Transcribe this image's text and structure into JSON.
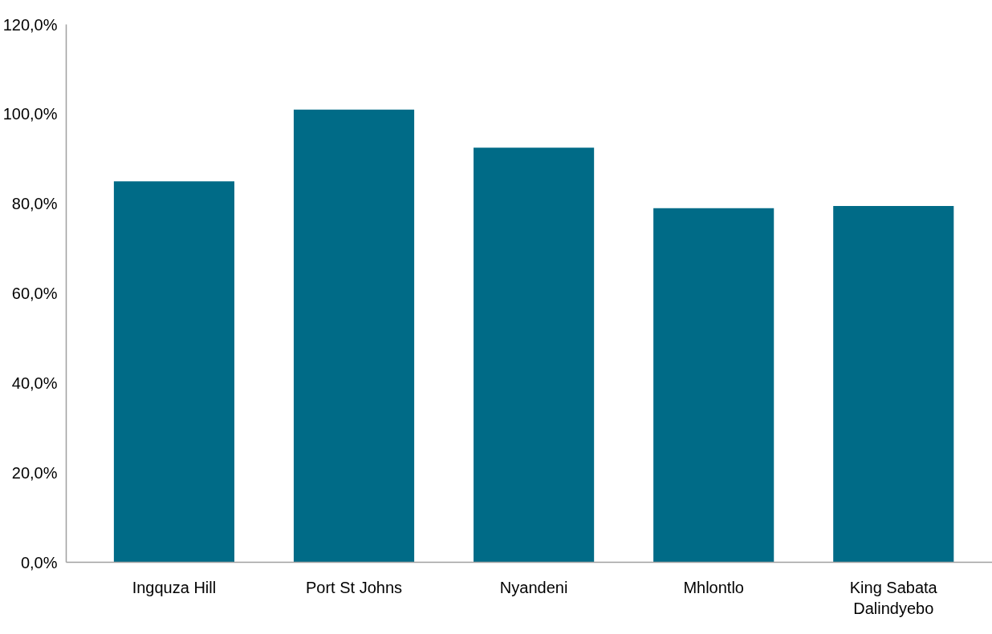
{
  "chart_data": {
    "type": "bar",
    "categories": [
      "Ingquza Hill",
      "Port St Johns",
      "Nyandeni",
      "Mhlontlo",
      "King Sabata\nDalindyebo"
    ],
    "series": [
      {
        "color": "#006b87",
        "values": [
          85,
          101,
          92.5,
          79,
          79.5
        ]
      }
    ],
    "ylim": [
      0,
      120
    ],
    "yticks": [
      {
        "value": 0,
        "label": "0,0%"
      },
      {
        "value": 20,
        "label": "20,0%"
      },
      {
        "value": 40,
        "label": "40,0%"
      },
      {
        "value": 60,
        "label": "60,0%"
      },
      {
        "value": 80,
        "label": "80,0%"
      },
      {
        "value": 100,
        "label": "100,0%"
      },
      {
        "value": 120,
        "label": "120,0%"
      }
    ],
    "grid": false
  }
}
